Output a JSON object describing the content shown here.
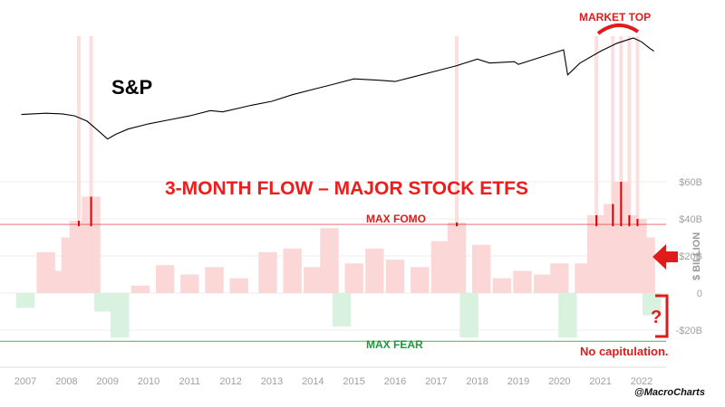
{
  "chart_data": [
    {
      "type": "line",
      "name": "S&P",
      "label": "S&P",
      "x": [
        "2006.9",
        "2007.5",
        "2007.9",
        "2008.2",
        "2008.5",
        "2008.8",
        "2009.0",
        "2009.2",
        "2009.5",
        "2010.0",
        "2010.5",
        "2011.0",
        "2011.5",
        "2011.8",
        "2012.5",
        "2013.0",
        "2013.5",
        "2014.0",
        "2014.5",
        "2015.0",
        "2015.6",
        "2016.0",
        "2016.5",
        "2017.0",
        "2017.5",
        "2018.0",
        "2018.3",
        "2018.9",
        "2019.0",
        "2019.5",
        "2019.9",
        "2020.1",
        "2020.2",
        "2020.5",
        "2021.0",
        "2021.4",
        "2021.8",
        "2022.0",
        "2022.2",
        "2022.3"
      ],
      "values": [
        32,
        34,
        33,
        30,
        22,
        6,
        -5,
        2,
        10,
        18,
        24,
        30,
        38,
        36,
        46,
        52,
        62,
        70,
        78,
        86,
        84,
        82,
        90,
        98,
        106,
        116,
        110,
        112,
        108,
        118,
        126,
        130,
        92,
        110,
        128,
        140,
        148,
        142,
        132,
        128
      ],
      "annotation": "MARKET TOP"
    },
    {
      "type": "bar",
      "title": "3-MONTH FLOW – MAJOR STOCK ETFS",
      "ylabel": "$ BILLION",
      "ylim": [
        -30,
        60
      ],
      "ytick_labels": [
        "$60B",
        "$40B",
        "$20B",
        "0",
        "-$20B"
      ],
      "yticks": [
        60,
        40,
        20,
        0,
        -20
      ],
      "xtick_labels": [
        "2007",
        "2008",
        "2009",
        "2010",
        "2011",
        "2012",
        "2013",
        "2014",
        "2015",
        "2016",
        "2017",
        "2018",
        "2019",
        "2020",
        "2021",
        "2022"
      ],
      "max_fomo_level": 37,
      "max_fear_level": -26,
      "x": [
        2007.0,
        2007.5,
        2007.9,
        2008.1,
        2008.3,
        2008.6,
        2008.9,
        2009.3,
        2009.8,
        2010.4,
        2011.0,
        2011.6,
        2012.2,
        2012.9,
        2013.5,
        2014.0,
        2014.4,
        2014.7,
        2015.0,
        2015.5,
        2016.0,
        2016.6,
        2017.1,
        2017.5,
        2017.8,
        2018.1,
        2018.6,
        2019.1,
        2019.6,
        2020.0,
        2020.2,
        2020.6,
        2020.9,
        2021.1,
        2021.3,
        2021.5,
        2021.7,
        2021.9,
        2022.1,
        2022.25
      ],
      "values": [
        -8,
        22,
        12,
        30,
        39,
        52,
        -10,
        -24,
        4,
        15,
        10,
        14,
        8,
        22,
        24,
        14,
        35,
        -18,
        16,
        24,
        18,
        14,
        28,
        38,
        -24,
        26,
        8,
        12,
        10,
        16,
        -24,
        16,
        42,
        36,
        48,
        60,
        42,
        40,
        30,
        -12
      ],
      "annotations": [
        "MAX FOMO",
        "MAX FEAR",
        "?",
        "No capitulation."
      ]
    }
  ],
  "watermark": "@MacroCharts",
  "colors": {
    "line": "#000000",
    "pos_fill": "#fcd7d7",
    "neg_fill": "#d9f1df",
    "fomo": "#e03030",
    "fear": "#1a9b3c",
    "spike": "#dd0000"
  }
}
